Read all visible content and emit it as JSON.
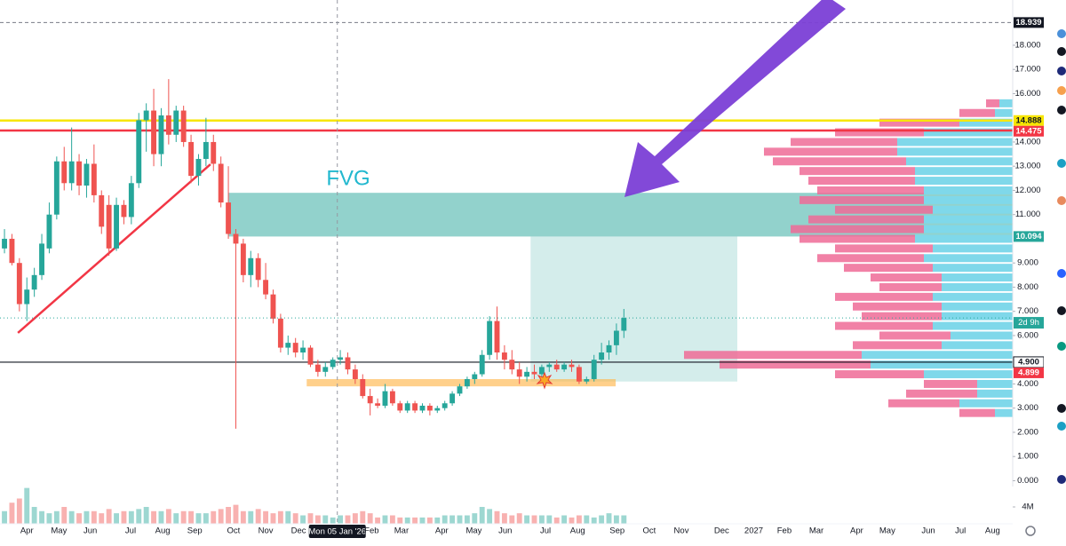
{
  "chart_data": {
    "type": "candlestick",
    "x": [
      0,
      1,
      2,
      3,
      4,
      5,
      6,
      7,
      8,
      9,
      10,
      11,
      12,
      13,
      14,
      15,
      16,
      17,
      18,
      19,
      20,
      21,
      22,
      23,
      24,
      25,
      26,
      27,
      28,
      29,
      30,
      31,
      32,
      33,
      34,
      35,
      36,
      37,
      38,
      39,
      40,
      41,
      42,
      43,
      44,
      45,
      46,
      47,
      48,
      49,
      50,
      51,
      52,
      53,
      54,
      55,
      56,
      57,
      58,
      59,
      60,
      61,
      62,
      63,
      64,
      65,
      66,
      67,
      68,
      69,
      70,
      71,
      72,
      73,
      74,
      75,
      76,
      77,
      78,
      79,
      80,
      81,
      82,
      83
    ],
    "open": [
      9.6,
      10.0,
      9.0,
      7.3,
      7.9,
      8.5,
      9.6,
      11.0,
      13.2,
      12.3,
      13.2,
      12.2,
      13.1,
      11.8,
      11.4,
      9.6,
      11.4,
      10.9,
      12.3,
      14.9,
      15.3,
      13.5,
      15.1,
      14.3,
      15.3,
      14.0,
      12.6,
      13.3,
      14.0,
      13.1,
      11.5,
      10.2,
      9.8,
      8.5,
      9.2,
      8.3,
      7.7,
      6.7,
      5.5,
      5.7,
      5.3,
      5.5,
      4.8,
      4.5,
      4.7,
      5.0,
      5.1,
      4.6,
      4.2,
      3.5,
      3.2,
      3.1,
      3.7,
      3.2,
      2.9,
      3.2,
      2.9,
      3.1,
      2.9,
      3.0,
      3.2,
      3.6,
      3.9,
      4.2,
      4.4,
      5.2,
      6.6,
      5.3,
      5.0,
      4.6,
      4.3,
      4.5,
      4.4,
      4.7,
      4.8,
      4.6,
      4.8,
      4.7,
      4.1,
      4.2,
      5.0,
      5.3,
      5.6,
      6.2
    ],
    "high": [
      10.4,
      10.2,
      9.2,
      8.4,
      8.8,
      10.2,
      11.5,
      13.4,
      13.8,
      14.6,
      13.5,
      13.3,
      13.9,
      12.0,
      11.8,
      11.7,
      11.6,
      12.6,
      15.2,
      15.6,
      16.2,
      15.4,
      16.6,
      15.5,
      15.5,
      14.3,
      13.5,
      15.0,
      14.3,
      13.4,
      13.0,
      10.4,
      10.0,
      9.5,
      9.4,
      9.0,
      7.9,
      6.9,
      6.0,
      5.9,
      5.8,
      5.6,
      5.0,
      4.9,
      5.1,
      5.4,
      5.3,
      4.8,
      4.4,
      3.8,
      3.4,
      4.0,
      3.8,
      3.3,
      3.3,
      3.3,
      3.2,
      3.2,
      3.1,
      3.3,
      3.7,
      4.0,
      4.3,
      4.5,
      5.4,
      6.8,
      7.2,
      5.6,
      5.4,
      4.9,
      4.7,
      4.8,
      4.8,
      4.9,
      5.0,
      4.9,
      5.0,
      4.8,
      4.3,
      5.2,
      5.7,
      5.8,
      6.5,
      7.1
    ],
    "low": [
      9.4,
      8.9,
      7.0,
      6.6,
      7.6,
      8.3,
      9.4,
      10.8,
      12.0,
      12.0,
      11.8,
      11.7,
      11.5,
      10.2,
      9.3,
      9.5,
      10.6,
      10.6,
      12.1,
      13.6,
      13.0,
      13.0,
      13.9,
      14.0,
      13.8,
      12.3,
      12.2,
      13.0,
      12.8,
      11.3,
      10.0,
      2.15,
      8.2,
      8.0,
      8.0,
      7.5,
      6.5,
      5.3,
      5.2,
      5.1,
      5.0,
      4.7,
      4.3,
      4.3,
      4.6,
      4.8,
      4.4,
      4.0,
      3.4,
      2.7,
      3.0,
      3.0,
      3.1,
      2.8,
      2.8,
      2.8,
      2.8,
      2.7,
      2.8,
      2.9,
      3.1,
      3.5,
      3.8,
      4.0,
      4.3,
      5.0,
      5.0,
      4.6,
      4.4,
      4.0,
      4.1,
      4.2,
      4.2,
      4.5,
      4.5,
      4.5,
      4.5,
      4.0,
      4.0,
      4.1,
      4.8,
      5.0,
      5.2,
      5.9
    ],
    "close": [
      10.0,
      9.0,
      7.3,
      7.9,
      8.5,
      9.8,
      11.0,
      13.2,
      12.3,
      13.2,
      12.2,
      13.1,
      11.8,
      10.5,
      9.6,
      11.4,
      10.9,
      12.3,
      14.9,
      15.3,
      13.5,
      15.1,
      14.3,
      15.3,
      14.0,
      12.6,
      13.3,
      14.0,
      13.1,
      11.5,
      10.2,
      9.8,
      8.5,
      9.2,
      8.3,
      7.7,
      6.7,
      5.5,
      5.7,
      5.3,
      5.5,
      4.8,
      4.5,
      4.7,
      5.0,
      5.1,
      4.6,
      4.2,
      3.5,
      3.2,
      3.1,
      3.7,
      3.2,
      2.9,
      3.2,
      2.9,
      3.1,
      2.9,
      3.0,
      3.2,
      3.6,
      3.9,
      4.2,
      4.4,
      5.2,
      6.6,
      5.3,
      5.0,
      4.6,
      4.3,
      4.5,
      4.4,
      4.7,
      4.8,
      4.6,
      4.8,
      4.7,
      4.1,
      4.2,
      5.0,
      5.3,
      5.6,
      6.2,
      6.73
    ],
    "up_color": "#26a69a",
    "down_color": "#ef5350",
    "xlim": [
      -0.6,
      135.1
    ],
    "xticks": [
      {
        "value": 3.0,
        "label": "Apr"
      },
      {
        "value": 7.3,
        "label": "May"
      },
      {
        "value": 11.5,
        "label": "Jun"
      },
      {
        "value": 16.9,
        "label": "Jul"
      },
      {
        "value": 21.2,
        "label": "Aug"
      },
      {
        "value": 25.5,
        "label": "Sep"
      },
      {
        "value": 30.7,
        "label": "Oct"
      },
      {
        "value": 35.0,
        "label": "Nov"
      },
      {
        "value": 39.4,
        "label": "Dec"
      },
      {
        "value": 44.6,
        "label": "Mon 05 Jan '26",
        "highlight": true
      },
      {
        "value": 49.2,
        "label": "Feb"
      },
      {
        "value": 53.2,
        "label": "Mar"
      },
      {
        "value": 58.6,
        "label": "Apr"
      },
      {
        "value": 62.9,
        "label": "May"
      },
      {
        "value": 67.1,
        "label": "Jun"
      },
      {
        "value": 72.5,
        "label": "Jul"
      },
      {
        "value": 76.8,
        "label": "Aug"
      },
      {
        "value": 82.1,
        "label": "Sep"
      },
      {
        "value": 86.4,
        "label": "Oct"
      },
      {
        "value": 90.7,
        "label": "Nov"
      },
      {
        "value": 96.1,
        "label": "Dec"
      },
      {
        "value": 100.4,
        "label": "2027"
      },
      {
        "value": 104.5,
        "label": "Feb"
      },
      {
        "value": 108.8,
        "label": "Mar"
      },
      {
        "value": 114.2,
        "label": "Apr"
      },
      {
        "value": 118.3,
        "label": "May"
      },
      {
        "value": 123.8,
        "label": "Jun"
      },
      {
        "value": 128.1,
        "label": "Jul"
      },
      {
        "value": 132.4,
        "label": "Aug"
      }
    ],
    "ylim": [
      -0.24,
      19.87
    ],
    "yticks": [
      {
        "value": 0,
        "label": "0.000"
      },
      {
        "value": 1,
        "label": "1.000"
      },
      {
        "value": 2,
        "label": "2.000"
      },
      {
        "value": 3,
        "label": "3.000"
      },
      {
        "value": 4,
        "label": "4.000"
      },
      {
        "value": 6,
        "label": "6.000"
      },
      {
        "value": 7,
        "label": "7.000"
      },
      {
        "value": 8,
        "label": "8.000"
      },
      {
        "value": 9,
        "label": "9.000"
      },
      {
        "value": 11,
        "label": "11.000"
      },
      {
        "value": 12,
        "label": "12.000"
      },
      {
        "value": 13,
        "label": "13.000"
      },
      {
        "value": 14,
        "label": "14.000"
      },
      {
        "value": 16,
        "label": "16.000"
      },
      {
        "value": 17,
        "label": "17.000"
      },
      {
        "value": 18,
        "label": "18.000"
      }
    ],
    "volume": {
      "values": [
        3000000.0,
        5000000.0,
        6000000.0,
        8500000.0,
        4000000.0,
        3000000.0,
        2500000.0,
        3000000.0,
        4000000.0,
        3000000.0,
        2500000.0,
        3000000.0,
        3000000.0,
        2500000.0,
        3500000.0,
        2500000.0,
        3000000.0,
        3000000.0,
        3500000.0,
        4000000.0,
        3000000.0,
        3000000.0,
        3500000.0,
        2500000.0,
        3000000.0,
        3000000.0,
        2500000.0,
        2500000.0,
        3000000.0,
        3500000.0,
        4000000.0,
        4500000.0,
        3000000.0,
        3000000.0,
        3500000.0,
        3000000.0,
        2500000.0,
        3000000.0,
        3000000.0,
        2500000.0,
        2000000.0,
        2500000.0,
        2000000.0,
        2000000.0,
        1500000.0,
        2000000.0,
        2000000.0,
        2500000.0,
        3000000.0,
        2500000.0,
        1500000.0,
        2000000.0,
        2000000.0,
        1500000.0,
        1500000.0,
        1500000.0,
        1500000.0,
        1500000.0,
        1500000.0,
        2000000.0,
        2000000.0,
        2000000.0,
        2000000.0,
        2500000.0,
        4000000.0,
        3500000.0,
        3000000.0,
        2500000.0,
        2000000.0,
        2500000.0,
        2000000.0,
        2000000.0,
        2000000.0,
        2000000.0,
        1500000.0,
        2000000.0,
        1500000.0,
        2000000.0,
        2000000.0,
        1500000.0,
        2000000.0,
        2500000.0,
        2000000.0,
        2000000.0
      ],
      "ylim": [
        0,
        8840000
      ],
      "yticks": [
        {
          "value": 4000000,
          "label": "4M"
        }
      ]
    },
    "levels": [
      {
        "value": 18.939,
        "color": "#787b86",
        "dashed": true
      },
      {
        "value": 14.888,
        "color": "#f7e600"
      },
      {
        "value": 14.475,
        "color": "#f23645"
      },
      {
        "value": 4.9,
        "color": "#131722"
      }
    ],
    "price_labels": [
      {
        "value": 18.939,
        "label": "18.939",
        "bg": "#131722",
        "fg": "#ffffff"
      },
      {
        "value": 14.888,
        "label": "14.888",
        "bg": "#f7e600",
        "fg": "#131722"
      },
      {
        "value": 14.475,
        "label": "14.475",
        "bg": "#f23645",
        "fg": "#ffffff"
      },
      {
        "value": 10.094,
        "label": "10.094",
        "bg": "#26a69a",
        "fg": "#ffffff"
      },
      {
        "value": 4.9,
        "label": "4.900",
        "bg": "#ffffff",
        "fg": "#131722"
      },
      {
        "value": 4.899,
        "label": "4.899",
        "bg": "#f23645",
        "fg": "#ffffff"
      }
    ],
    "countdown": "2d 9h",
    "zones": [
      {
        "x": [
          30,
          135.1
        ],
        "values": [
          10.094,
          11.9
        ],
        "color": "rgba(38,166,154,0.5)"
      },
      {
        "x": [
          70.5,
          98.2
        ],
        "values": [
          4.1,
          10.094
        ],
        "color": "rgba(38,166,154,0.2)"
      },
      {
        "x": [
          40.5,
          81.9
        ],
        "values": [
          3.9,
          4.2
        ],
        "color": "rgba(255,183,77,0.65)"
      }
    ],
    "trendline": {
      "x": [
        1.8,
        27.6
      ],
      "values": [
        6.11,
        13.08
      ],
      "color": "#f23645"
    },
    "annotation": "FVG",
    "volume_profile": {
      "levels": [
        15.6,
        15.2,
        14.8,
        14.4,
        14.0,
        13.6,
        13.2,
        12.8,
        12.4,
        12.0,
        11.6,
        11.2,
        10.8,
        10.4,
        10.0,
        9.6,
        9.2,
        8.8,
        8.4,
        8.0,
        7.6,
        7.2,
        6.8,
        6.4,
        6.0,
        5.6,
        5.2,
        4.8,
        4.4,
        4.0,
        3.6,
        3.2,
        2.8
      ],
      "up": [
        15,
        20,
        60,
        100,
        130,
        130,
        120,
        110,
        110,
        100,
        100,
        90,
        100,
        100,
        110,
        90,
        100,
        90,
        80,
        80,
        90,
        80,
        80,
        90,
        70,
        80,
        170,
        160,
        100,
        40,
        40,
        60,
        20
      ],
      "down": [
        15,
        40,
        90,
        100,
        120,
        150,
        150,
        130,
        120,
        120,
        140,
        110,
        130,
        150,
        130,
        110,
        120,
        100,
        80,
        70,
        110,
        100,
        90,
        110,
        80,
        100,
        200,
        170,
        100,
        60,
        80,
        80,
        40
      ],
      "up_color": "#7fd8ea",
      "down_color": "#ef6b97"
    }
  }
}
